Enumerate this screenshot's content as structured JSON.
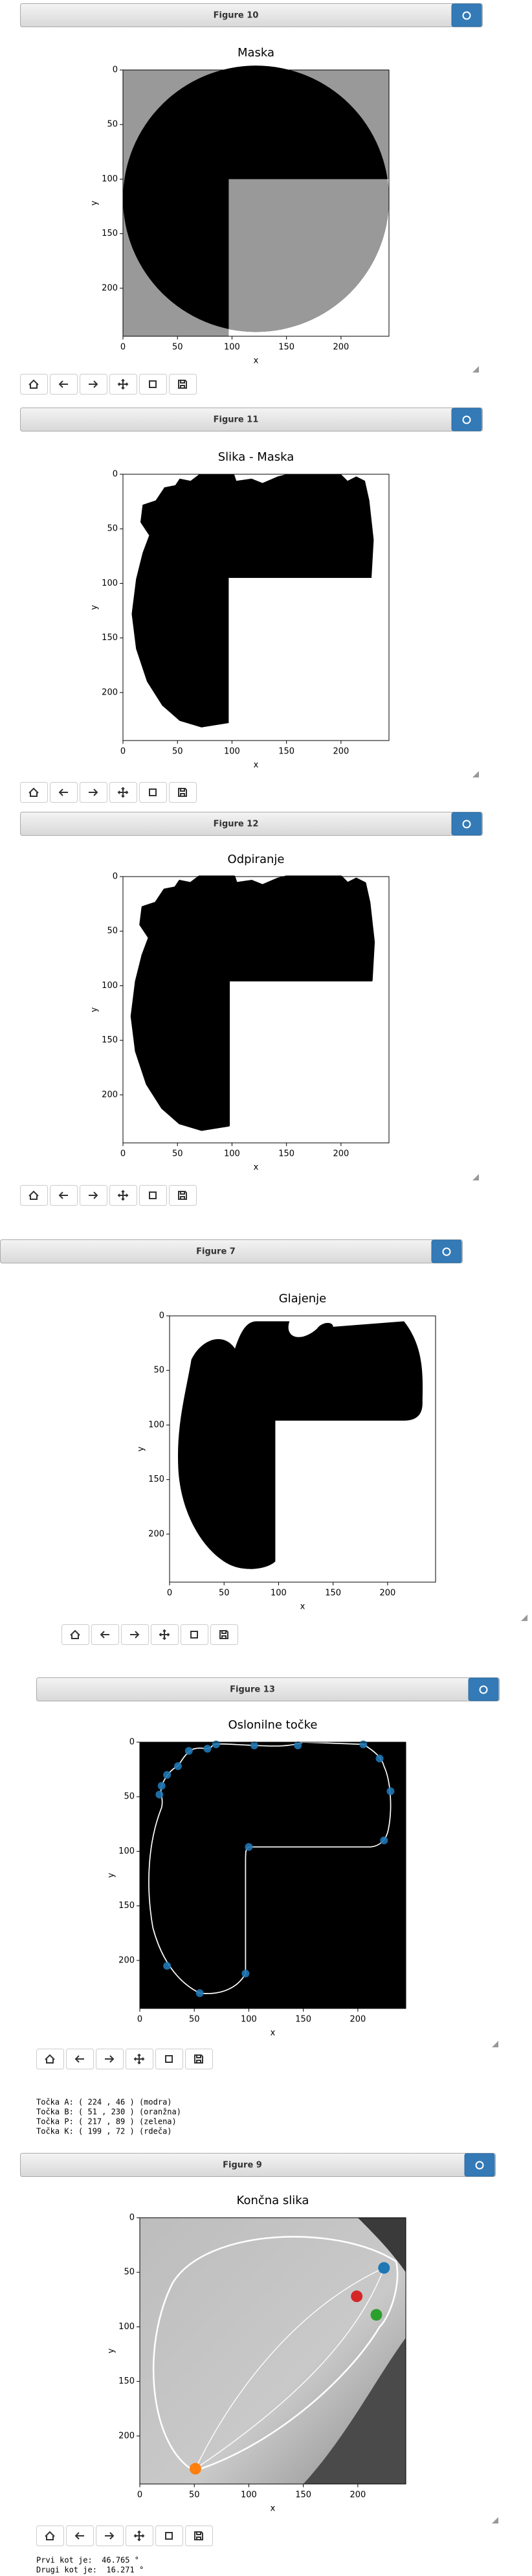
{
  "figures": [
    {
      "header": "Figure 10",
      "title": "Maska",
      "xlabel": "x",
      "ylabel": "y",
      "xlim": [
        0,
        244
      ],
      "ylim": [
        244,
        0
      ],
      "xticks": [
        0,
        50,
        100,
        150,
        200
      ],
      "yticks": [
        0,
        50,
        100,
        150,
        200
      ]
    },
    {
      "header": "Figure 11",
      "title": "Slika - Maska",
      "xlabel": "x",
      "ylabel": "y",
      "xlim": [
        0,
        244
      ],
      "ylim": [
        244,
        0
      ],
      "xticks": [
        0,
        50,
        100,
        150,
        200
      ],
      "yticks": [
        0,
        50,
        100,
        150,
        200
      ]
    },
    {
      "header": "Figure 12",
      "title": "Odpiranje",
      "xlabel": "x",
      "ylabel": "y",
      "xlim": [
        0,
        244
      ],
      "ylim": [
        244,
        0
      ],
      "xticks": [
        0,
        50,
        100,
        150,
        200
      ],
      "yticks": [
        0,
        50,
        100,
        150,
        200
      ]
    },
    {
      "header": "Figure 7",
      "title": "Glajenje",
      "xlabel": "x",
      "ylabel": "y",
      "xlim": [
        0,
        244
      ],
      "ylim": [
        244,
        0
      ],
      "xticks": [
        0,
        50,
        100,
        150,
        200
      ],
      "yticks": [
        0,
        50,
        100,
        150,
        200
      ]
    },
    {
      "header": "Figure 13",
      "title": "Oslonilne točke",
      "xlabel": "x",
      "ylabel": "y",
      "xlim": [
        0,
        244
      ],
      "ylim": [
        244,
        0
      ],
      "xticks": [
        0,
        50,
        100,
        150,
        200
      ],
      "yticks": [
        0,
        50,
        100,
        150,
        200
      ],
      "points": [
        {
          "x": 20,
          "y": 40,
          "color": "#1f77b4"
        },
        {
          "x": 18,
          "y": 48,
          "color": "#1f77b4"
        },
        {
          "x": 25,
          "y": 30,
          "color": "#1f77b4"
        },
        {
          "x": 35,
          "y": 22,
          "color": "#1f77b4"
        },
        {
          "x": 45,
          "y": 8,
          "color": "#1f77b4"
        },
        {
          "x": 62,
          "y": 6,
          "color": "#1f77b4"
        },
        {
          "x": 70,
          "y": 2,
          "color": "#1f77b4"
        },
        {
          "x": 105,
          "y": 3,
          "color": "#1f77b4"
        },
        {
          "x": 145,
          "y": 3,
          "color": "#1f77b4"
        },
        {
          "x": 205,
          "y": 2,
          "color": "#1f77b4"
        },
        {
          "x": 220,
          "y": 15,
          "color": "#1f77b4"
        },
        {
          "x": 230,
          "y": 45,
          "color": "#1f77b4"
        },
        {
          "x": 224,
          "y": 90,
          "color": "#1f77b4"
        },
        {
          "x": 100,
          "y": 96,
          "color": "#1f77b4"
        },
        {
          "x": 97,
          "y": 212,
          "color": "#1f77b4"
        },
        {
          "x": 55,
          "y": 230,
          "color": "#1f77b4"
        },
        {
          "x": 25,
          "y": 205,
          "color": "#1f77b4"
        }
      ]
    },
    {
      "header": "Figure 9",
      "title": "Končna slika",
      "xlabel": "x",
      "ylabel": "y",
      "xlim": [
        0,
        244
      ],
      "ylim": [
        244,
        0
      ],
      "xticks": [
        0,
        50,
        100,
        150,
        200
      ],
      "yticks": [
        0,
        50,
        100,
        150,
        200
      ],
      "points": [
        {
          "x": 224,
          "y": 46,
          "color": "#1f77b4"
        },
        {
          "x": 51,
          "y": 230,
          "color": "#ff7f0e"
        },
        {
          "x": 217,
          "y": 89,
          "color": "#2ca02c"
        },
        {
          "x": 199,
          "y": 72,
          "color": "#d62728"
        }
      ]
    }
  ],
  "outputs": [
    [
      "Točka A: ( 224 , 46 ) (modra)",
      "Točka B: ( 51 , 230 ) (oranžna)",
      "Točka P: ( 217 , 89 ) (zelena)",
      "Točka K: ( 199 , 72 ) (rdeča)"
    ],
    [
      "Prvi kot je:  46.765 °",
      "Drugi kot je:  16.271 °"
    ]
  ]
}
